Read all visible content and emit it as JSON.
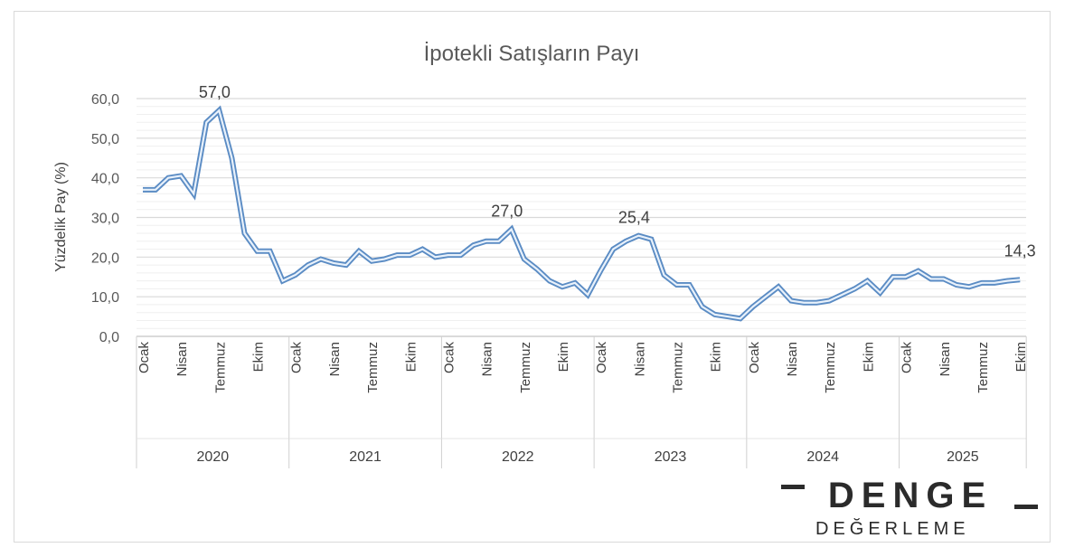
{
  "chart_data": {
    "type": "line",
    "title": "İpotekli Satışların Payı",
    "xlabel": "",
    "ylabel": "Yüzdelik Pay (%)",
    "ylim": [
      0,
      60
    ],
    "yticks": [
      "0,0",
      "10,0",
      "20,0",
      "30,0",
      "40,0",
      "50,0",
      "60,0"
    ],
    "grid": true,
    "years": [
      "2020",
      "2021",
      "2022",
      "2023",
      "2024",
      "2025"
    ],
    "month_labels": [
      "Ocak",
      "Nisan",
      "Temmuz",
      "Ekim"
    ],
    "series": [
      {
        "name": "İpotekli Satışların Payı",
        "color": "#5b8cc4",
        "values": [
          37,
          37,
          40,
          40.5,
          36,
          54,
          57,
          45,
          26,
          21.5,
          21.5,
          14,
          15.5,
          18,
          19.5,
          18.5,
          18,
          21.5,
          19,
          19.5,
          20.5,
          20.5,
          22,
          20,
          20.5,
          20.5,
          23,
          24,
          24,
          27,
          19.5,
          17,
          14,
          12.5,
          13.5,
          10.5,
          16.5,
          22,
          24,
          25.4,
          24.5,
          15.5,
          13,
          13,
          7.5,
          5.5,
          5,
          4.5,
          7.5,
          10,
          12.5,
          9,
          8.5,
          8.5,
          9,
          10.5,
          12,
          14,
          11,
          15,
          15,
          16.5,
          14.5,
          14.5,
          13,
          12.5,
          13.5,
          13.5,
          14,
          14.3
        ]
      }
    ],
    "annotations": [
      {
        "index": 6,
        "text": "57,0"
      },
      {
        "index": 29,
        "text": "27,0"
      },
      {
        "index": 39,
        "text": "25,4"
      },
      {
        "index": 69,
        "text": "14,3"
      }
    ]
  },
  "logo": {
    "name": "DENGE",
    "subtitle": "DEĞERLEME"
  }
}
